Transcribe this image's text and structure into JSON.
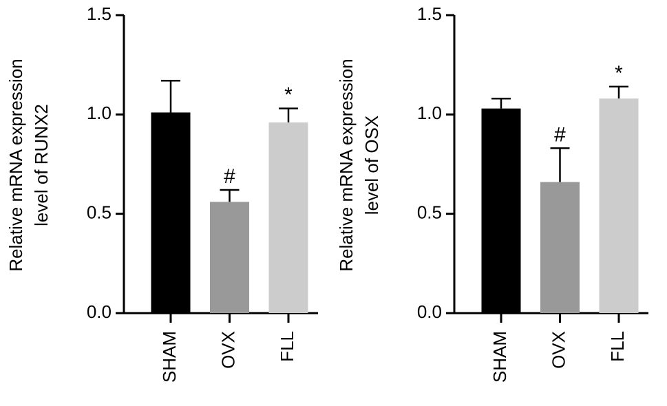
{
  "chart_data": [
    {
      "type": "bar",
      "ylabel": [
        "Relative mRNA expression",
        "level of RUNX2"
      ],
      "categories": [
        "SHAM",
        "OVX",
        "FLL"
      ],
      "values": [
        1.01,
        0.56,
        0.96
      ],
      "errors": [
        0.16,
        0.06,
        0.07
      ],
      "markers": [
        null,
        "#",
        "*"
      ],
      "colors": [
        "#000000",
        "#999999",
        "#cccccc"
      ],
      "ylim": [
        0,
        1.5
      ],
      "yticks": [
        {
          "value": 0,
          "label": "0.0"
        },
        0.5,
        {
          "value": 1,
          "label": "1.0"
        },
        1.5
      ]
    },
    {
      "type": "bar",
      "ylabel": [
        "Relative mRNA expression",
        "level of OSX"
      ],
      "categories": [
        "SHAM",
        "OVX",
        "FLL"
      ],
      "values": [
        1.03,
        0.66,
        1.08
      ],
      "errors": [
        0.05,
        0.17,
        0.06
      ],
      "markers": [
        null,
        "#",
        "*"
      ],
      "colors": [
        "#000000",
        "#999999",
        "#cccccc"
      ],
      "ylim": [
        0,
        1.5
      ],
      "yticks": [
        {
          "value": 0,
          "label": "0.0"
        },
        0.5,
        {
          "value": 1,
          "label": "1.0"
        },
        1.5
      ]
    }
  ]
}
